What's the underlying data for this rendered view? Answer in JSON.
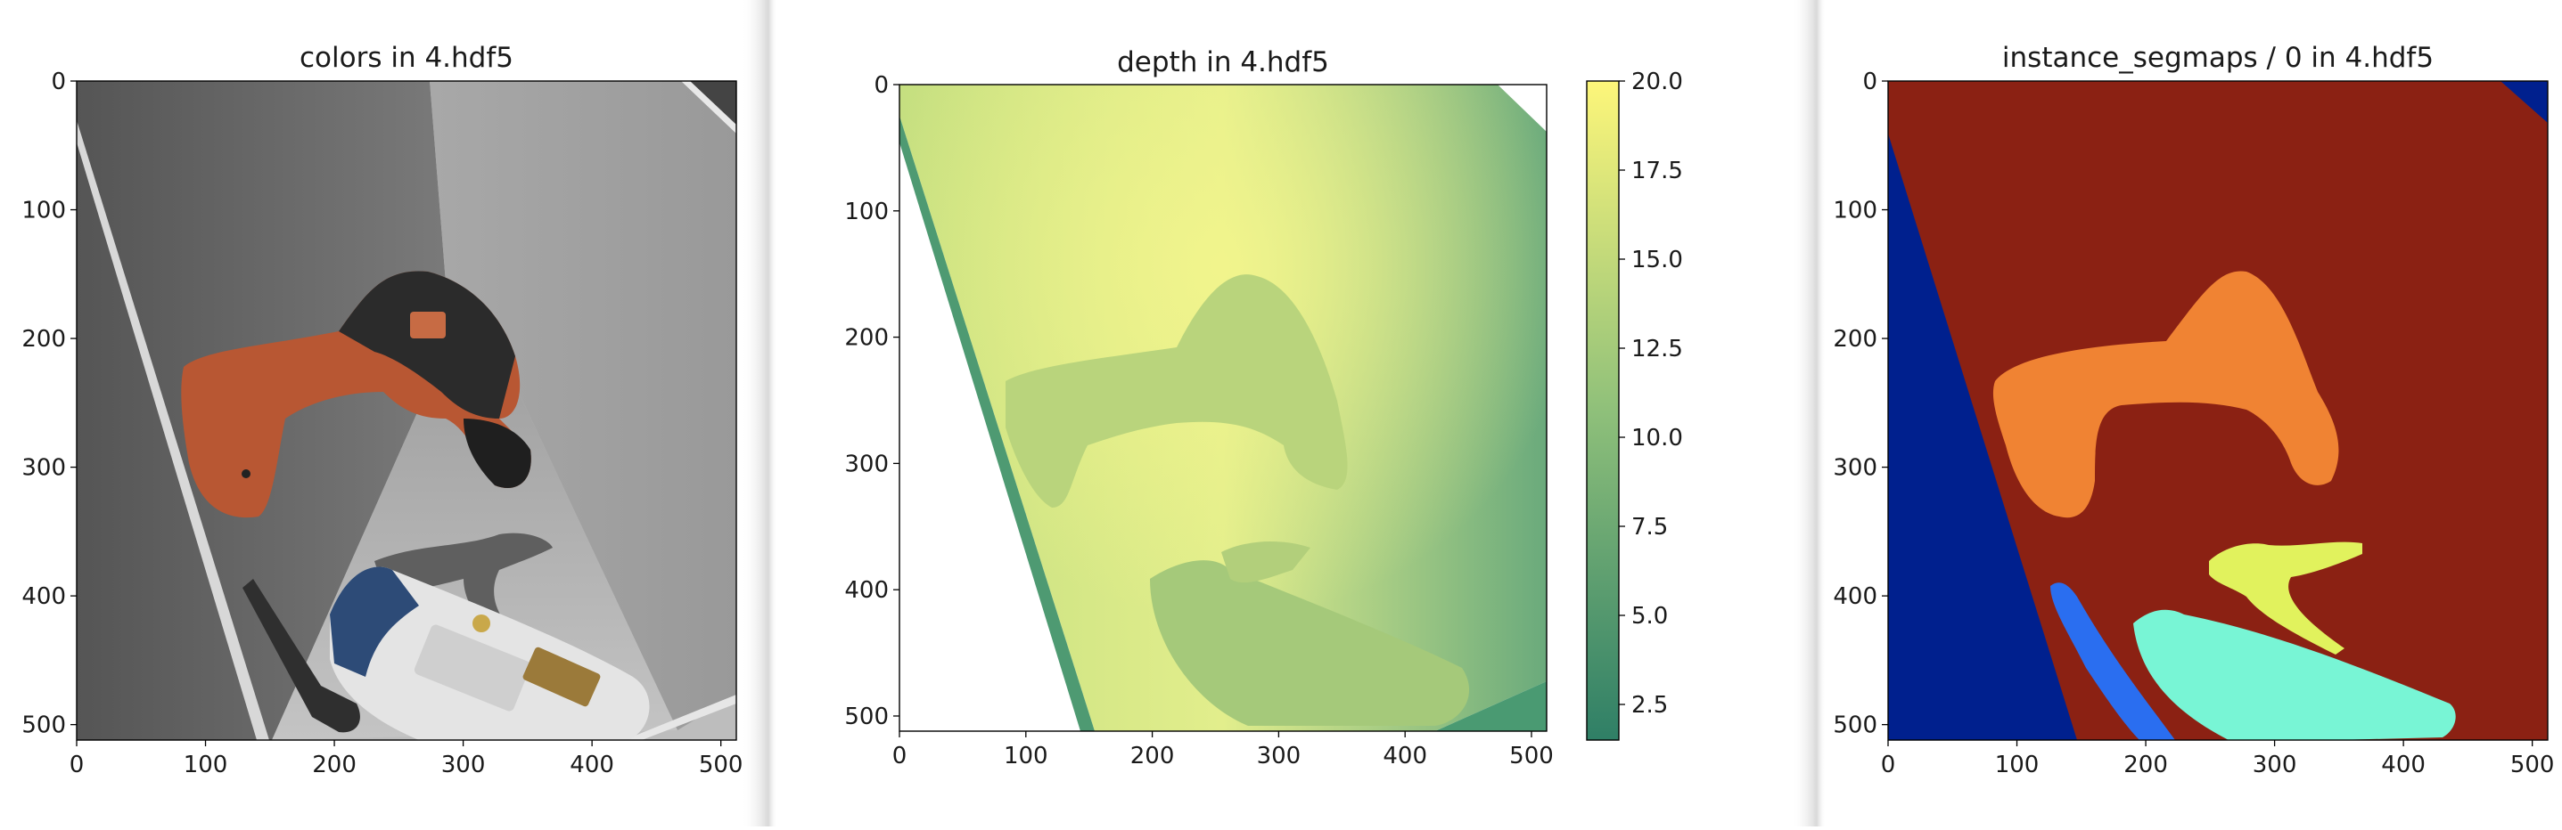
{
  "chart_data": [
    {
      "type": "image",
      "title": "colors in 4.hdf5",
      "xlim": [
        0,
        512
      ],
      "ylim": [
        512,
        0
      ],
      "x_ticks": [
        "0",
        "100",
        "200",
        "300",
        "400",
        "500"
      ],
      "y_ticks": [
        "0",
        "100",
        "200",
        "300",
        "400",
        "500"
      ]
    },
    {
      "type": "heatmap",
      "title": "depth in 4.hdf5",
      "colormap": "summer",
      "xlim": [
        0,
        512
      ],
      "ylim": [
        512,
        0
      ],
      "x_ticks": [
        "0",
        "100",
        "200",
        "300",
        "400",
        "500"
      ],
      "y_ticks": [
        "0",
        "100",
        "200",
        "300",
        "400",
        "500"
      ],
      "colorbar": {
        "range": [
          1.5,
          20.0
        ],
        "ticks": [
          "2.5",
          "5.0",
          "7.5",
          "10.0",
          "12.5",
          "15.0",
          "17.5",
          "20.0"
        ]
      }
    },
    {
      "type": "heatmap",
      "title": "instance_segmaps / 0 in 4.hdf5",
      "colormap": "jet",
      "xlim": [
        0,
        512
      ],
      "ylim": [
        512,
        0
      ],
      "x_ticks": [
        "0",
        "100",
        "200",
        "300",
        "400",
        "500"
      ],
      "y_ticks": [
        "0",
        "100",
        "200",
        "300",
        "400",
        "500"
      ]
    }
  ],
  "colors": {
    "seg_background": "#8b2113",
    "seg_wall": "#00208e",
    "seg_drill": "#f08333",
    "seg_bottle": "#78f5d5",
    "seg_clamp": "#e1f25d",
    "seg_scissors": "#2a6ef0"
  }
}
